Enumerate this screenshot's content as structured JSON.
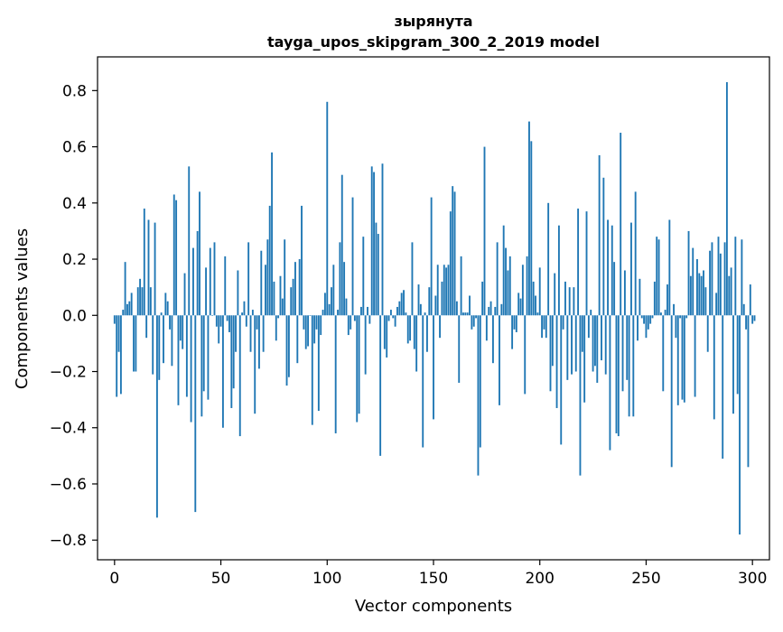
{
  "chart_data": {
    "type": "bar",
    "title": "зырянута",
    "subtitle": "tayga_upos_skipgram_300_2_2019 model",
    "xlabel": "Vector components",
    "ylabel": "Components values",
    "xlim": [
      -8,
      308
    ],
    "ylim": [
      -0.87,
      0.92
    ],
    "xticks": [
      0,
      50,
      100,
      150,
      200,
      250,
      300
    ],
    "yticks": [
      -0.8,
      -0.6,
      -0.4,
      -0.2,
      0.0,
      0.2,
      0.4,
      0.6,
      0.8
    ],
    "ytick_labels": [
      "−0.8",
      "−0.6",
      "−0.4",
      "−0.2",
      "0.0",
      "0.2",
      "0.4",
      "0.6",
      "0.8"
    ],
    "bar_color": "#1f77b4",
    "grid": false,
    "legend": "none",
    "values": [
      -0.03,
      -0.29,
      -0.13,
      -0.28,
      0.02,
      0.19,
      0.04,
      0.05,
      0.08,
      -0.2,
      -0.2,
      0.1,
      0.13,
      0.1,
      0.38,
      -0.08,
      0.34,
      0.1,
      -0.21,
      0.33,
      -0.72,
      -0.23,
      0.01,
      -0.17,
      0.08,
      0.05,
      -0.05,
      -0.18,
      0.43,
      0.41,
      -0.32,
      -0.09,
      -0.12,
      0.15,
      -0.29,
      0.53,
      -0.38,
      0.24,
      -0.7,
      0.3,
      0.44,
      -0.36,
      -0.27,
      0.17,
      -0.3,
      0.24,
      0.0,
      0.26,
      -0.04,
      -0.1,
      -0.04,
      -0.4,
      0.21,
      -0.02,
      -0.06,
      -0.33,
      -0.26,
      -0.13,
      0.16,
      -0.43,
      0.01,
      0.05,
      -0.04,
      0.26,
      -0.13,
      0.02,
      -0.35,
      -0.05,
      -0.19,
      0.23,
      -0.13,
      0.18,
      0.27,
      0.39,
      0.58,
      0.12,
      -0.09,
      -0.01,
      0.14,
      0.06,
      0.27,
      -0.25,
      -0.22,
      0.1,
      0.13,
      0.19,
      -0.17,
      0.2,
      0.39,
      -0.05,
      -0.12,
      -0.11,
      0.0,
      -0.39,
      -0.1,
      -0.05,
      -0.34,
      -0.07,
      0.02,
      0.08,
      0.76,
      0.04,
      0.1,
      0.18,
      -0.42,
      0.02,
      0.26,
      0.5,
      0.19,
      0.06,
      -0.07,
      -0.05,
      0.42,
      -0.02,
      -0.38,
      -0.35,
      0.03,
      0.28,
      -0.21,
      0.03,
      -0.03,
      0.53,
      0.51,
      0.33,
      0.29,
      -0.5,
      0.54,
      -0.12,
      -0.15,
      -0.02,
      0.02,
      -0.01,
      -0.04,
      0.03,
      0.05,
      0.08,
      0.09,
      0.01,
      -0.1,
      -0.09,
      0.26,
      -0.12,
      -0.2,
      0.11,
      0.04,
      -0.47,
      0.01,
      -0.13,
      0.1,
      0.42,
      -0.37,
      0.07,
      0.18,
      -0.08,
      0.12,
      0.18,
      0.17,
      0.18,
      0.37,
      0.46,
      0.44,
      0.05,
      -0.24,
      0.21,
      0.01,
      0.01,
      0.01,
      0.07,
      -0.05,
      -0.04,
      -0.01,
      -0.57,
      -0.47,
      0.12,
      0.6,
      -0.09,
      0.03,
      0.05,
      -0.17,
      0.03,
      0.26,
      -0.32,
      0.04,
      0.32,
      0.24,
      0.16,
      0.21,
      -0.12,
      -0.05,
      -0.06,
      0.08,
      0.06,
      0.18,
      -0.28,
      0.21,
      0.69,
      0.62,
      0.12,
      0.07,
      0.01,
      0.17,
      -0.08,
      -0.05,
      -0.08,
      0.4,
      -0.27,
      -0.18,
      0.15,
      -0.33,
      0.32,
      -0.46,
      -0.05,
      0.12,
      -0.23,
      0.1,
      -0.21,
      0.1,
      -0.2,
      0.38,
      -0.57,
      -0.13,
      -0.31,
      0.37,
      -0.08,
      0.02,
      -0.2,
      -0.18,
      -0.24,
      0.57,
      -0.16,
      0.49,
      -0.21,
      0.34,
      -0.48,
      0.32,
      0.19,
      -0.42,
      -0.43,
      0.65,
      -0.27,
      0.16,
      -0.23,
      -0.36,
      0.33,
      -0.36,
      0.44,
      -0.09,
      0.13,
      -0.01,
      -0.03,
      -0.08,
      -0.05,
      -0.03,
      -0.01,
      0.12,
      0.28,
      0.27,
      0.01,
      -0.27,
      0.02,
      0.11,
      0.34,
      -0.54,
      0.04,
      -0.08,
      -0.32,
      -0.01,
      -0.3,
      -0.31,
      -0.01,
      0.3,
      0.14,
      0.24,
      -0.29,
      0.2,
      0.15,
      0.14,
      0.16,
      0.1,
      -0.13,
      0.23,
      0.26,
      -0.37,
      0.08,
      0.28,
      0.22,
      -0.51,
      0.26,
      0.83,
      0.14,
      0.17,
      -0.35,
      0.28,
      -0.28,
      -0.78,
      0.27,
      0.04,
      -0.05,
      -0.54,
      0.11,
      -0.03,
      -0.02
    ]
  }
}
